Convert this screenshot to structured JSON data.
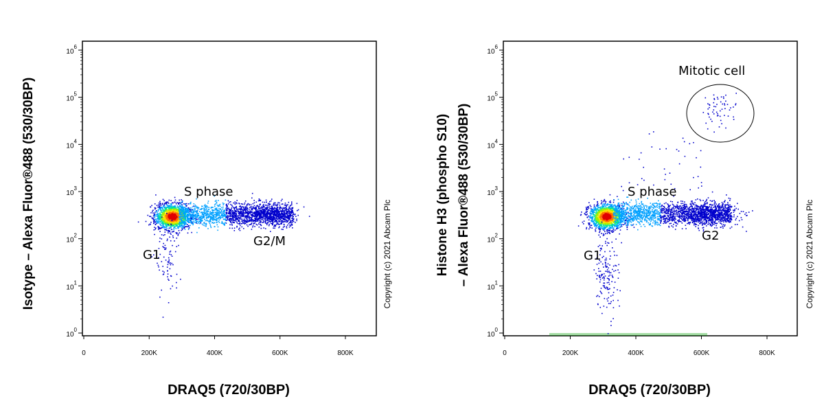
{
  "chart_data": [
    {
      "type": "scatter",
      "scale": {
        "x": "linear",
        "y": "log"
      },
      "xlim": [
        0,
        900000
      ],
      "ylim": [
        1,
        1000000
      ],
      "xlabel": "DRAQ5 (720/30BP)",
      "ylabel": "Isotype – Alexa Fluor®488 (530/30BP)",
      "x_ticks": [
        "0",
        "200K",
        "400K",
        "600K",
        "800K"
      ],
      "y_ticks": [
        {
          "base": "10",
          "exp": "0"
        },
        {
          "base": "10",
          "exp": "1"
        },
        {
          "base": "10",
          "exp": "2"
        },
        {
          "base": "10",
          "exp": "3"
        },
        {
          "base": "10",
          "exp": "4"
        },
        {
          "base": "10",
          "exp": "5"
        },
        {
          "base": "10",
          "exp": "6"
        }
      ],
      "annotations": [
        {
          "text": "S phase",
          "x": 350000,
          "y": 700
        },
        {
          "text": "G1",
          "x": 210000,
          "y": 65
        },
        {
          "text": "G2/M",
          "x": 560000,
          "y": 120
        }
      ],
      "populations": [
        {
          "label": "G1",
          "x_center": 270000,
          "y_center": 300,
          "count": 1700
        },
        {
          "label": "S phase",
          "x_range": [
            290000,
            640000
          ],
          "y_center": 330,
          "count": 1600
        },
        {
          "label": "G2/M",
          "x_center": 560000,
          "y_center": 330,
          "count": 500
        },
        {
          "label": "low tail",
          "x_center": 255000,
          "y_center": 40,
          "count": 90
        }
      ]
    },
    {
      "type": "scatter",
      "scale": {
        "x": "linear",
        "y": "log"
      },
      "xlim": [
        0,
        900000
      ],
      "ylim": [
        1,
        1000000
      ],
      "xlabel": "DRAQ5 (720/30BP)",
      "ylabel": [
        "Histone H3 (phospho S10)",
        "– Alexa Fluor®488 (530/30BP)"
      ],
      "x_ticks": [
        "0",
        "200K",
        "400K",
        "600K",
        "800K"
      ],
      "y_ticks": [
        {
          "base": "10",
          "exp": "0"
        },
        {
          "base": "10",
          "exp": "1"
        },
        {
          "base": "10",
          "exp": "2"
        },
        {
          "base": "10",
          "exp": "3"
        },
        {
          "base": "10",
          "exp": "4"
        },
        {
          "base": "10",
          "exp": "5"
        },
        {
          "base": "10",
          "exp": "6"
        }
      ],
      "annotations": [
        {
          "text": "Mitotic cell",
          "x": 660000,
          "y": 300000
        },
        {
          "text": "S phase",
          "x": 460000,
          "y": 700
        },
        {
          "text": "G1",
          "x": 270000,
          "y": 70
        },
        {
          "text": "G2",
          "x": 630000,
          "y": 140
        }
      ],
      "gate": {
        "label": "Mitotic cell",
        "x_center": 655000,
        "y_center": 58000,
        "x_halfwidth": 100000,
        "y_decades_halfheight": 0.73
      },
      "populations": [
        {
          "label": "G1",
          "x_center": 310000,
          "y_center": 300,
          "count": 1600
        },
        {
          "label": "S phase",
          "x_range": [
            330000,
            690000
          ],
          "y_center": 350,
          "count": 1600
        },
        {
          "label": "G2",
          "x_center": 620000,
          "y_center": 340,
          "count": 500
        },
        {
          "label": "Mitotic cell",
          "x_center": 655000,
          "y_center": 58000,
          "count": 60
        },
        {
          "label": "low tail",
          "x_center": 310000,
          "y_center": 20,
          "count": 160
        },
        {
          "label": "upper scatter",
          "x_range": [
            350000,
            600000
          ],
          "y_range": [
            1000,
            20000
          ],
          "count": 40
        }
      ]
    }
  ],
  "copyright": "Copyright (c) 2021 Abcam Plc",
  "colors": {
    "dot_sparse": "#0000cc",
    "density": [
      "#1010e0",
      "#00a0ff",
      "#00e0a0",
      "#a0f000",
      "#ffe000",
      "#ff7000",
      "#e00000"
    ],
    "axis": "#000000",
    "baseline_band": "#00a000"
  }
}
